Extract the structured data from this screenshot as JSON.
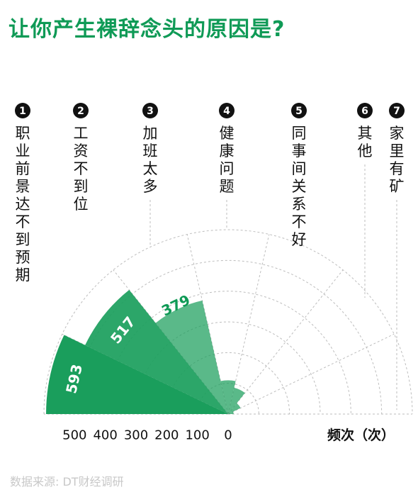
{
  "title": "让你产生裸辞念头的原因是?",
  "source": "数据来源: DT财经调研",
  "chart_data": {
    "type": "polar-bar",
    "title": "让你产生裸辞念头的原因是?",
    "axis_label": "频次（次）",
    "radial_ticks": [
      "500",
      "400",
      "300",
      "200",
      "100",
      "0"
    ],
    "rmax": 600,
    "grid": true,
    "categories": [
      {
        "num": "1",
        "label": "职业前景达不到预期",
        "value": 593,
        "show_value": true
      },
      {
        "num": "2",
        "label": "工资不到位",
        "value": 517,
        "show_value": true
      },
      {
        "num": "3",
        "label": "加班太多",
        "value": 379,
        "show_value": true
      },
      {
        "num": "4",
        "label": "健康问题",
        "value": 110,
        "show_value": false
      },
      {
        "num": "5",
        "label": "同事间关系不好",
        "value": 88,
        "show_value": false
      },
      {
        "num": "6",
        "label": "其他",
        "value": 45,
        "show_value": false
      },
      {
        "num": "7",
        "label": "家里有矿",
        "value": 18,
        "show_value": false
      }
    ],
    "colors": {
      "fill": "#1a9e5c",
      "title": "#0f9a56",
      "label": "#ffffff",
      "label_outside": "#0f9a56",
      "grid": "#bdbdbd",
      "text": "#111111"
    }
  }
}
